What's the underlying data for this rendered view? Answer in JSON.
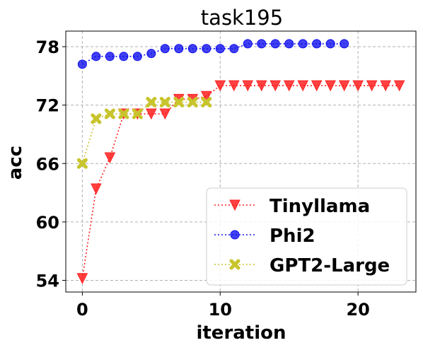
{
  "chart_data": {
    "type": "line",
    "title": "task195",
    "xlabel": "iteration",
    "ylabel": "acc",
    "xlim": [
      -1.2,
      24.2
    ],
    "ylim": [
      52.8,
      79.6
    ],
    "xticks": [
      0,
      10,
      20
    ],
    "yticks": [
      54,
      60,
      66,
      72,
      78
    ],
    "grid": true,
    "legend_position": "lower-right",
    "series": [
      {
        "name": "Tinyllama",
        "color": "#ff2020",
        "marker": "triangle-down",
        "x": [
          0,
          1,
          2,
          3,
          4,
          5,
          6,
          7,
          8,
          9,
          10,
          11,
          12,
          13,
          14,
          15,
          16,
          17,
          18,
          19,
          20,
          21,
          22,
          23
        ],
        "y": [
          54.2,
          63.4,
          66.6,
          71.1,
          71.1,
          71.1,
          71.1,
          72.6,
          72.6,
          72.9,
          74.0,
          74.0,
          74.0,
          74.0,
          74.0,
          74.0,
          74.0,
          74.0,
          74.0,
          74.0,
          74.0,
          74.0,
          74.0,
          74.0
        ]
      },
      {
        "name": "Phi2",
        "color": "#1010ee",
        "marker": "circle",
        "x": [
          0,
          1,
          2,
          3,
          4,
          5,
          6,
          7,
          8,
          9,
          10,
          11,
          12,
          13,
          14,
          15,
          16,
          17,
          18,
          19
        ],
        "y": [
          76.2,
          77.0,
          77.0,
          77.0,
          77.0,
          77.3,
          77.8,
          77.8,
          77.8,
          77.8,
          77.8,
          77.8,
          78.3,
          78.3,
          78.3,
          78.3,
          78.3,
          78.3,
          78.3,
          78.3
        ]
      },
      {
        "name": "GPT2-Large",
        "color": "#c8c42c",
        "marker": "x",
        "x": [
          0,
          1,
          2,
          3,
          4,
          5,
          6,
          7,
          8,
          9
        ],
        "y": [
          66.0,
          70.6,
          71.1,
          71.1,
          71.1,
          72.3,
          72.3,
          72.3,
          72.3,
          72.3
        ]
      }
    ]
  }
}
